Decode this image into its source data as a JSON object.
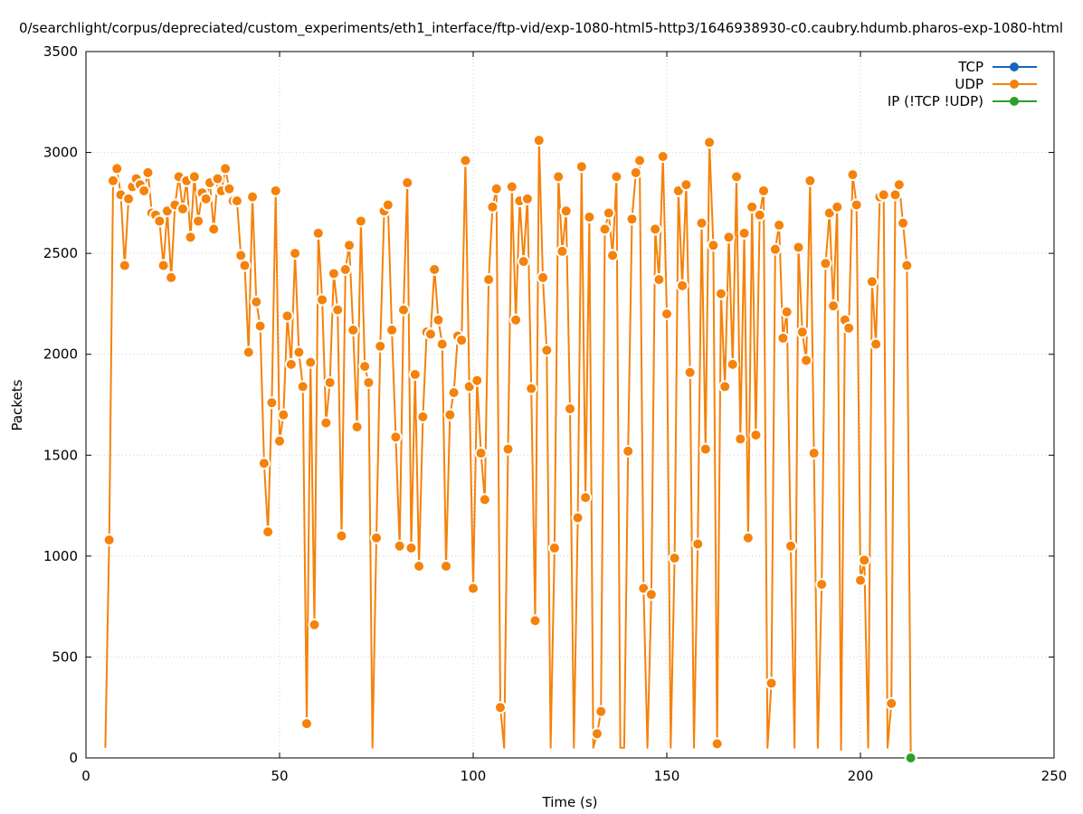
{
  "chart_data": {
    "type": "line",
    "title": "0/searchlight/corpus/depreciated/custom_experiments/eth1_interface/ftp-vid/exp-1080-html5-http3/1646938930-c0.caubry.hdumb.pharos-exp-1080-html",
    "xlabel": "Time (s)",
    "ylabel": "Packets",
    "xlim": [
      0,
      250
    ],
    "ylim": [
      0,
      3500
    ],
    "xticks": [
      "0",
      "50",
      "100",
      "150",
      "200",
      "250"
    ],
    "yticks": [
      "0",
      "500",
      "1000",
      "1500",
      "2000",
      "2500",
      "3000",
      "3500"
    ],
    "grid": true,
    "legend_position": "top-right",
    "series": [
      {
        "name": "TCP",
        "color": "#1565c0",
        "x": [],
        "y": []
      },
      {
        "name": "UDP",
        "color": "#f5820a",
        "x": [
          5,
          6,
          7,
          8,
          9,
          10,
          11,
          12,
          13,
          14,
          15,
          16,
          17,
          18,
          19,
          20,
          21,
          22,
          23,
          24,
          25,
          26,
          27,
          28,
          29,
          30,
          31,
          32,
          33,
          34,
          35,
          36,
          37,
          38,
          39,
          40,
          41,
          42,
          43,
          44,
          45,
          46,
          47,
          48,
          49,
          50,
          51,
          52,
          53,
          54,
          55,
          56,
          57,
          58,
          59,
          60,
          61,
          62,
          63,
          64,
          65,
          66,
          67,
          68,
          69,
          70,
          71,
          72,
          73,
          74,
          75,
          76,
          77,
          78,
          79,
          80,
          81,
          82,
          83,
          84,
          85,
          86,
          87,
          88,
          89,
          90,
          91,
          92,
          93,
          94,
          95,
          96,
          97,
          98,
          99,
          100,
          101,
          102,
          103,
          104,
          105,
          106,
          107,
          108,
          109,
          110,
          111,
          112,
          113,
          114,
          115,
          116,
          117,
          118,
          119,
          120,
          121,
          122,
          123,
          124,
          125,
          126,
          127,
          128,
          129,
          130,
          131,
          132,
          133,
          134,
          135,
          136,
          137,
          138,
          139,
          140,
          141,
          142,
          143,
          144,
          145,
          146,
          147,
          148,
          149,
          150,
          151,
          152,
          153,
          154,
          155,
          156,
          157,
          158,
          159,
          160,
          161,
          162,
          163,
          164,
          165,
          166,
          167,
          168,
          169,
          170,
          171,
          172,
          173,
          174,
          175,
          176,
          177,
          178,
          179,
          180,
          181,
          182,
          183,
          184,
          185,
          186,
          187,
          188,
          189,
          190,
          191,
          192,
          193,
          194,
          195,
          196,
          197,
          198,
          199,
          200,
          201,
          202,
          203,
          204,
          205,
          206,
          207,
          208,
          209,
          210,
          211,
          212,
          213
        ],
        "y": [
          50,
          1080,
          2860,
          2920,
          2790,
          2440,
          2770,
          2830,
          2870,
          2840,
          2810,
          2900,
          2700,
          2690,
          2660,
          2440,
          2710,
          2380,
          2740,
          2880,
          2720,
          2860,
          2580,
          2880,
          2660,
          2800,
          2770,
          2850,
          2620,
          2870,
          2810,
          2920,
          2820,
          2760,
          2760,
          2490,
          2440,
          2010,
          2780,
          2260,
          2140,
          1460,
          1120,
          1760,
          2810,
          1570,
          1700,
          2190,
          1950,
          2500,
          2010,
          1840,
          170,
          1960,
          660,
          2600,
          2270,
          1660,
          1860,
          2400,
          2220,
          1100,
          2420,
          2540,
          2120,
          1640,
          2660,
          1940,
          1860,
          50,
          1090,
          2040,
          2710,
          2740,
          2120,
          1590,
          1050,
          2220,
          2850,
          1040,
          1900,
          950,
          1690,
          2110,
          2100,
          2420,
          2170,
          2050,
          950,
          1700,
          1810,
          2090,
          2070,
          2960,
          1840,
          840,
          1870,
          1510,
          1280,
          2370,
          2730,
          2820,
          250,
          50,
          1530,
          2830,
          2170,
          2760,
          2460,
          2770,
          1830,
          680,
          3060,
          2380,
          2020,
          50,
          1040,
          2880,
          2510,
          2710,
          1730,
          50,
          1190,
          2930,
          1290,
          2680,
          50,
          120,
          230,
          2620,
          2700,
          2490,
          2880,
          50,
          50,
          1520,
          2670,
          2900,
          2960,
          840,
          50,
          810,
          2620,
          2370,
          2980,
          2200,
          50,
          990,
          2810,
          2340,
          2840,
          1910,
          50,
          1060,
          2650,
          1530,
          3050,
          2540,
          70,
          2300,
          1840,
          2580,
          1950,
          2880,
          1580,
          2600,
          1090,
          2730,
          1600,
          2690,
          2810,
          50,
          370,
          2520,
          2640,
          2080,
          2210,
          1050,
          50,
          2530,
          2110,
          1970,
          2860,
          1510,
          50,
          860,
          2450,
          2700,
          2240,
          2730,
          40,
          2170,
          2130,
          2890,
          2740,
          880,
          980,
          50,
          2360,
          2050,
          2780,
          2790,
          50,
          270,
          2790,
          2840,
          2650,
          2440,
          30
        ]
      },
      {
        "name": "IP (!TCP  !UDP)",
        "color": "#2ca02c",
        "x": [
          213
        ],
        "y": [
          0
        ]
      }
    ]
  }
}
